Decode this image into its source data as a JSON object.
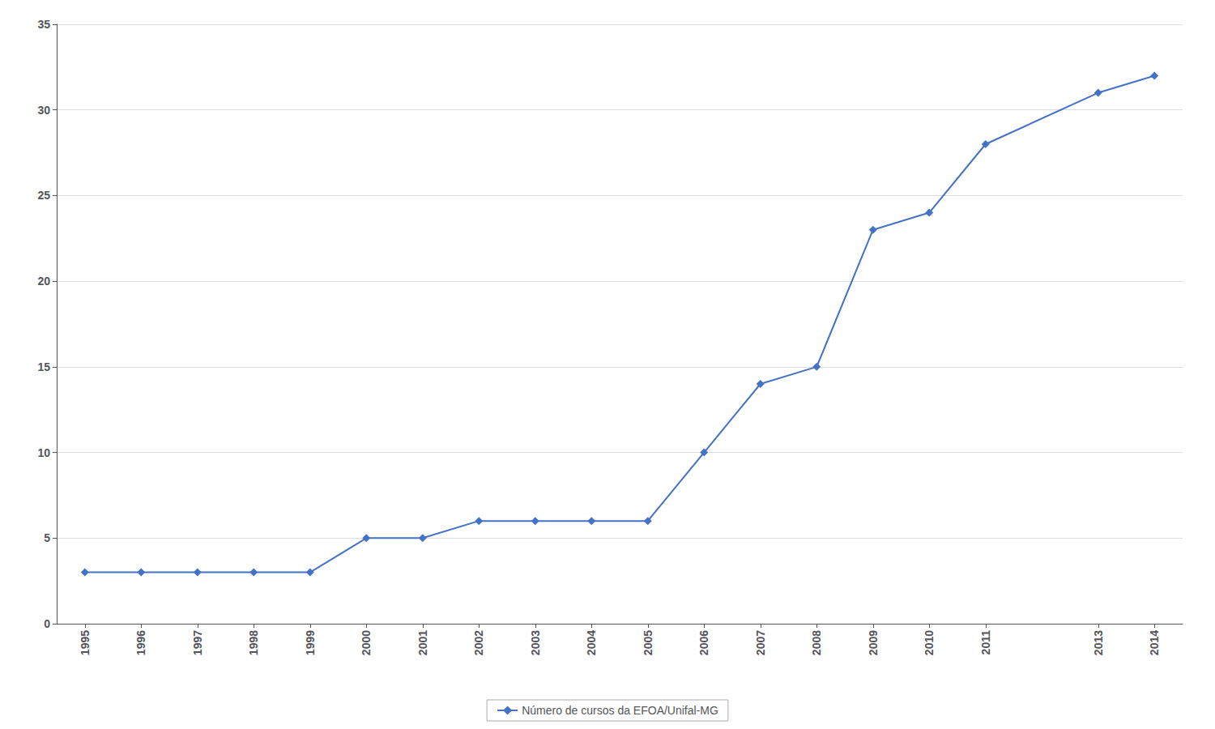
{
  "chart_data": {
    "type": "line",
    "x": [
      1995,
      1996,
      1997,
      1998,
      1999,
      2000,
      2001,
      2002,
      2003,
      2004,
      2005,
      2006,
      2007,
      2008,
      2009,
      2010,
      2011,
      2013,
      2014
    ],
    "series": [
      {
        "name": "Número de cursos da EFOA/Unifal-MG",
        "color": "#4472C4",
        "marker": "diamond",
        "values": [
          3,
          3,
          3,
          3,
          3,
          5,
          5,
          6,
          6,
          6,
          6,
          10,
          14,
          15,
          23,
          24,
          28,
          31,
          32
        ]
      }
    ],
    "xlim": [
      1994.5,
      2014.5
    ],
    "xticks": [
      1995,
      1996,
      1997,
      1998,
      1999,
      2000,
      2001,
      2002,
      2003,
      2004,
      2005,
      2006,
      2007,
      2008,
      2009,
      2010,
      2011,
      2013,
      2014
    ],
    "ylim": [
      0,
      35
    ],
    "yticks": [
      0,
      5,
      10,
      15,
      20,
      25,
      30,
      35
    ],
    "grid": "y",
    "legend": "bottom"
  }
}
